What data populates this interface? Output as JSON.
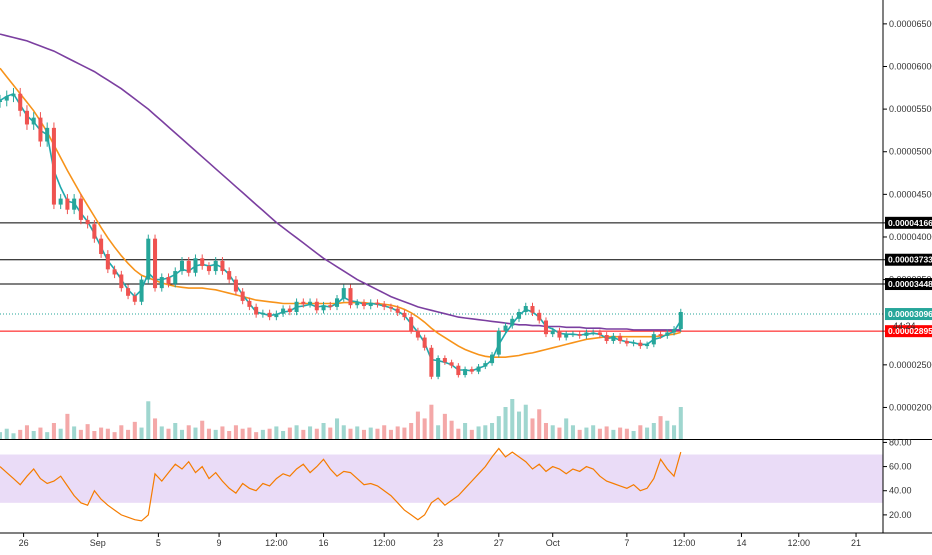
{
  "chart_data": {
    "type": "line",
    "colors": {
      "background": "#ffffff",
      "up": "#26a69a",
      "down": "#ef5350",
      "ma_fast": "#1fa8ad",
      "ma_mid": "#f7931a",
      "ma_slow": "#7b3fa0",
      "resistance": "#000000",
      "support": "#ff0000",
      "current_dotted": "#26a69a",
      "current_badge": "#26a69a",
      "rsi_line": "#f57c00",
      "rsi_band": "#eadcf7",
      "volume_up": "#9fd6cf",
      "volume_down": "#f4a8a8"
    },
    "price_axis": {
      "labels": [
        "0.00006500",
        "0.00006000",
        "0.00005500",
        "0.00005000",
        "0.00004500",
        "0.00004000",
        "0.00003500",
        "0.00002500",
        "0.00002000"
      ],
      "ylim": [
        1.63e-05,
        6.78e-05
      ],
      "grid": false
    },
    "rsi_axis": {
      "labels": [
        "80.00",
        "60.00",
        "40.00",
        "20.00"
      ],
      "ylim": [
        5,
        82
      ],
      "band": [
        30,
        70
      ]
    },
    "x_axis": {
      "labels": [
        "26",
        "Sep",
        "5",
        "9",
        "12:00",
        "16",
        "12:00",
        "23",
        "27",
        "Oct",
        "7",
        "12:00",
        "14",
        "12:00",
        "21"
      ],
      "label_positions": [
        0.5,
        11.5,
        20.5,
        29.5,
        38,
        45,
        54,
        62,
        71,
        79,
        90,
        98.5,
        107,
        115.5,
        124
      ],
      "xlim": [
        -3,
        128
      ]
    },
    "level_lines": [
      {
        "value": 4.166e-05,
        "label": "0.00004166",
        "color": "#000000",
        "style": "solid"
      },
      {
        "value": 3.733e-05,
        "label": "0.00003733",
        "color": "#000000",
        "style": "solid"
      },
      {
        "value": 3.448e-05,
        "label": "0.00003448",
        "color": "#000000",
        "style": "solid"
      },
      {
        "value": 2.895e-05,
        "label": "0.00002895",
        "color": "#ff0000",
        "style": "solid"
      }
    ],
    "current_price": {
      "value": 3.096e-05,
      "label": "0.00003096",
      "countdown": "44:24"
    },
    "price_series": {
      "x": [
        -3,
        -2,
        -1,
        0,
        1,
        2,
        3,
        4,
        5,
        6,
        7,
        8,
        9,
        10,
        11,
        12,
        13,
        14,
        15,
        16,
        17,
        18,
        19,
        20,
        21,
        22,
        23,
        24,
        25,
        26,
        27,
        28,
        29,
        30,
        31,
        32,
        33,
        34,
        35,
        36,
        37,
        38,
        39,
        40,
        41,
        42,
        43,
        44,
        45,
        46,
        47,
        48,
        49,
        50,
        51,
        52,
        53,
        54,
        55,
        56,
        57,
        58,
        59,
        60,
        61,
        62,
        63,
        64,
        65,
        66,
        67,
        68,
        69,
        70,
        71,
        72,
        73,
        74,
        75,
        76,
        77,
        78,
        79,
        80,
        81,
        82,
        83,
        84,
        85,
        86,
        87,
        88,
        89,
        90,
        91,
        92,
        93,
        94,
        95,
        96,
        97,
        98
      ],
      "close": [
        5.6e-05,
        5.65e-05,
        5.68e-05,
        5.48e-05,
        5.32e-05,
        5.4e-05,
        5.12e-05,
        5.28e-05,
        4.38e-05,
        4.45e-05,
        4.32e-05,
        4.45e-05,
        4.2e-05,
        4.15e-05,
        3.98e-05,
        3.8e-05,
        3.62e-05,
        3.56e-05,
        3.4e-05,
        3.31e-05,
        3.24e-05,
        3.5e-05,
        3.98e-05,
        3.4e-05,
        3.53e-05,
        3.45e-05,
        3.6e-05,
        3.72e-05,
        3.58e-05,
        3.75e-05,
        3.66e-05,
        3.6e-05,
        3.72e-05,
        3.6e-05,
        3.5e-05,
        3.36e-05,
        3.25e-05,
        3.18e-05,
        3.09e-05,
        3.11e-05,
        3.06e-05,
        3.1e-05,
        3.16e-05,
        3.12e-05,
        3.24e-05,
        3.21e-05,
        3.24e-05,
        3.14e-05,
        3.2e-05,
        3.18e-05,
        3.28e-05,
        3.4e-05,
        3.2e-05,
        3.23e-05,
        3.19e-05,
        3.23e-05,
        3.21e-05,
        3.18e-05,
        3.16e-05,
        3.11e-05,
        3.06e-05,
        2.9e-05,
        2.82e-05,
        2.7e-05,
        2.36e-05,
        2.58e-05,
        2.53e-05,
        2.49e-05,
        2.38e-05,
        2.45e-05,
        2.42e-05,
        2.48e-05,
        2.52e-05,
        2.62e-05,
        2.9e-05,
        2.96e-05,
        3.04e-05,
        3.12e-05,
        3.19e-05,
        3.11e-05,
        3.02e-05,
        2.86e-05,
        2.9e-05,
        2.82e-05,
        2.86e-05,
        2.86e-05,
        2.84e-05,
        2.88e-05,
        2.88e-05,
        2.85e-05,
        2.78e-05,
        2.84e-05,
        2.78e-05,
        2.75e-05,
        2.76e-05,
        2.72e-05,
        2.74e-05,
        2.86e-05,
        2.84e-05,
        2.88e-05,
        2.92e-05,
        3.12e-05
      ],
      "ma_fast": [
        5.6e-05,
        5.65e-05,
        5.68e-05,
        5.55e-05,
        5.42e-05,
        5.35e-05,
        5.25e-05,
        5.2e-05,
        4.78e-05,
        4.58e-05,
        4.42e-05,
        4.4e-05,
        4.28e-05,
        4.18e-05,
        4.04e-05,
        3.88e-05,
        3.72e-05,
        3.62e-05,
        3.5e-05,
        3.38e-05,
        3.3e-05,
        3.38e-05,
        3.58e-05,
        3.5e-05,
        3.5e-05,
        3.52e-05,
        3.56e-05,
        3.62e-05,
        3.6e-05,
        3.66e-05,
        3.68e-05,
        3.66e-05,
        3.68e-05,
        3.64e-05,
        3.56e-05,
        3.44e-05,
        3.32e-05,
        3.22e-05,
        3.12e-05,
        3.1e-05,
        3.08e-05,
        3.09e-05,
        3.12e-05,
        3.13e-05,
        3.18e-05,
        3.19e-05,
        3.21e-05,
        3.18e-05,
        3.19e-05,
        3.18e-05,
        3.22e-05,
        3.29e-05,
        3.25e-05,
        3.24e-05,
        3.21e-05,
        3.22e-05,
        3.21e-05,
        3.19e-05,
        3.17e-05,
        3.13e-05,
        3.08e-05,
        2.98e-05,
        2.88e-05,
        2.76e-05,
        2.56e-05,
        2.55e-05,
        2.53e-05,
        2.5e-05,
        2.44e-05,
        2.44e-05,
        2.43e-05,
        2.46e-05,
        2.49e-05,
        2.56e-05,
        2.74e-05,
        2.87e-05,
        2.98e-05,
        3.08e-05,
        3.15e-05,
        3.12e-05,
        3.06e-05,
        2.95e-05,
        2.92e-05,
        2.87e-05,
        2.86e-05,
        2.86e-05,
        2.85e-05,
        2.86e-05,
        2.87e-05,
        2.86e-05,
        2.81e-05,
        2.82e-05,
        2.79e-05,
        2.77e-05,
        2.76e-05,
        2.74e-05,
        2.74e-05,
        2.8e-05,
        2.82e-05,
        2.86e-05,
        2.89e-05,
        3.02e-05
      ],
      "ma_mid": [
        5.98e-05,
        5.88e-05,
        5.78e-05,
        5.68e-05,
        5.58e-05,
        5.48e-05,
        5.36e-05,
        5.23e-05,
        5.08e-05,
        4.93e-05,
        4.78e-05,
        4.64e-05,
        4.5e-05,
        4.37e-05,
        4.24e-05,
        4.11e-05,
        3.99e-05,
        3.88e-05,
        3.78e-05,
        3.69e-05,
        3.61e-05,
        3.55e-05,
        3.52e-05,
        3.49e-05,
        3.46e-05,
        3.44e-05,
        3.42e-05,
        3.41e-05,
        3.4e-05,
        3.4e-05,
        3.4e-05,
        3.39e-05,
        3.38e-05,
        3.36e-05,
        3.34e-05,
        3.32e-05,
        3.3e-05,
        3.28e-05,
        3.26e-05,
        3.25e-05,
        3.24e-05,
        3.23e-05,
        3.22e-05,
        3.22e-05,
        3.22e-05,
        3.22e-05,
        3.22e-05,
        3.22e-05,
        3.22e-05,
        3.22e-05,
        3.22e-05,
        3.23e-05,
        3.23e-05,
        3.23e-05,
        3.23e-05,
        3.22e-05,
        3.22e-05,
        3.21e-05,
        3.2e-05,
        3.18e-05,
        3.15e-05,
        3.11e-05,
        3.06e-05,
        3e-05,
        2.93e-05,
        2.87e-05,
        2.82e-05,
        2.77e-05,
        2.72e-05,
        2.68e-05,
        2.65e-05,
        2.62e-05,
        2.6e-05,
        2.59e-05,
        2.59e-05,
        2.59e-05,
        2.6e-05,
        2.61e-05,
        2.63e-05,
        2.64e-05,
        2.66e-05,
        2.68e-05,
        2.7e-05,
        2.72e-05,
        2.74e-05,
        2.76e-05,
        2.78e-05,
        2.8e-05,
        2.81e-05,
        2.82e-05,
        2.83e-05,
        2.83e-05,
        2.83e-05,
        2.83e-05,
        2.83e-05,
        2.83e-05,
        2.83e-05,
        2.83e-05,
        2.84e-05,
        2.85e-05,
        2.86e-05,
        2.88e-05
      ],
      "ma_slow": [
        6.38e-05,
        6.36e-05,
        6.34e-05,
        6.32e-05,
        6.3e-05,
        6.27e-05,
        6.24e-05,
        6.21e-05,
        6.18e-05,
        6.14e-05,
        6.1e-05,
        6.06e-05,
        6.02e-05,
        5.98e-05,
        5.94e-05,
        5.89e-05,
        5.84e-05,
        5.79e-05,
        5.74e-05,
        5.68e-05,
        5.62e-05,
        5.56e-05,
        5.5e-05,
        5.43e-05,
        5.36e-05,
        5.29e-05,
        5.22e-05,
        5.15e-05,
        5.08e-05,
        5.01e-05,
        4.94e-05,
        4.87e-05,
        4.8e-05,
        4.73e-05,
        4.66e-05,
        4.59e-05,
        4.52e-05,
        4.45e-05,
        4.38e-05,
        4.31e-05,
        4.24e-05,
        4.17e-05,
        4.11e-05,
        4.05e-05,
        3.99e-05,
        3.93e-05,
        3.87e-05,
        3.81e-05,
        3.75e-05,
        3.7e-05,
        3.65e-05,
        3.6e-05,
        3.55e-05,
        3.5e-05,
        3.46e-05,
        3.42e-05,
        3.38e-05,
        3.34e-05,
        3.3e-05,
        3.27e-05,
        3.24e-05,
        3.21e-05,
        3.18e-05,
        3.16e-05,
        3.14e-05,
        3.12e-05,
        3.1e-05,
        3.08e-05,
        3.06e-05,
        3.05e-05,
        3.04e-05,
        3.03e-05,
        3.02e-05,
        3.01e-05,
        3e-05,
        2.99e-05,
        2.98e-05,
        2.97e-05,
        2.97e-05,
        2.96e-05,
        2.96e-05,
        2.95e-05,
        2.95e-05,
        2.95e-05,
        2.94e-05,
        2.94e-05,
        2.94e-05,
        2.93e-05,
        2.93e-05,
        2.93e-05,
        2.92e-05,
        2.92e-05,
        2.92e-05,
        2.92e-05,
        2.91e-05,
        2.91e-05,
        2.91e-05,
        2.91e-05,
        2.91e-05,
        2.91e-05,
        2.91e-05,
        2.91e-05
      ]
    },
    "volume": [
      6,
      9,
      5,
      8,
      12,
      7,
      10,
      6,
      14,
      9,
      22,
      11,
      8,
      13,
      7,
      10,
      9,
      6,
      12,
      8,
      15,
      10,
      33,
      18,
      11,
      9,
      14,
      8,
      12,
      10,
      16,
      9,
      8,
      11,
      7,
      12,
      9,
      10,
      6,
      8,
      9,
      11,
      7,
      10,
      12,
      8,
      11,
      9,
      14,
      10,
      18,
      12,
      9,
      11,
      8,
      10,
      9,
      12,
      8,
      11,
      10,
      14,
      24,
      18,
      30,
      12,
      22,
      16,
      9,
      14,
      8,
      11,
      12,
      14,
      20,
      28,
      35,
      24,
      30,
      18,
      26,
      14,
      12,
      10,
      18,
      12,
      8,
      10,
      12,
      9,
      11,
      8,
      10,
      9,
      7,
      12,
      10,
      14,
      20,
      16,
      12,
      28
    ],
    "rsi": [
      60,
      55,
      50,
      45,
      52,
      58,
      50,
      46,
      48,
      52,
      44,
      36,
      30,
      28,
      40,
      33,
      28,
      24,
      20,
      18,
      16,
      15,
      20,
      54,
      48,
      55,
      62,
      58,
      64,
      55,
      60,
      50,
      55,
      48,
      42,
      38,
      46,
      42,
      40,
      46,
      44,
      50,
      54,
      52,
      58,
      62,
      55,
      60,
      66,
      58,
      52,
      56,
      55,
      50,
      45,
      46,
      44,
      40,
      36,
      30,
      24,
      20,
      16,
      20,
      30,
      34,
      28,
      32,
      36,
      42,
      48,
      54,
      60,
      68,
      75,
      68,
      72,
      68,
      64,
      58,
      62,
      56,
      60,
      58,
      54,
      58,
      56,
      60,
      58,
      52,
      48,
      46,
      44,
      42,
      45,
      40,
      42,
      50,
      66,
      58,
      52,
      72
    ],
    "rsi_x_start": -3
  }
}
